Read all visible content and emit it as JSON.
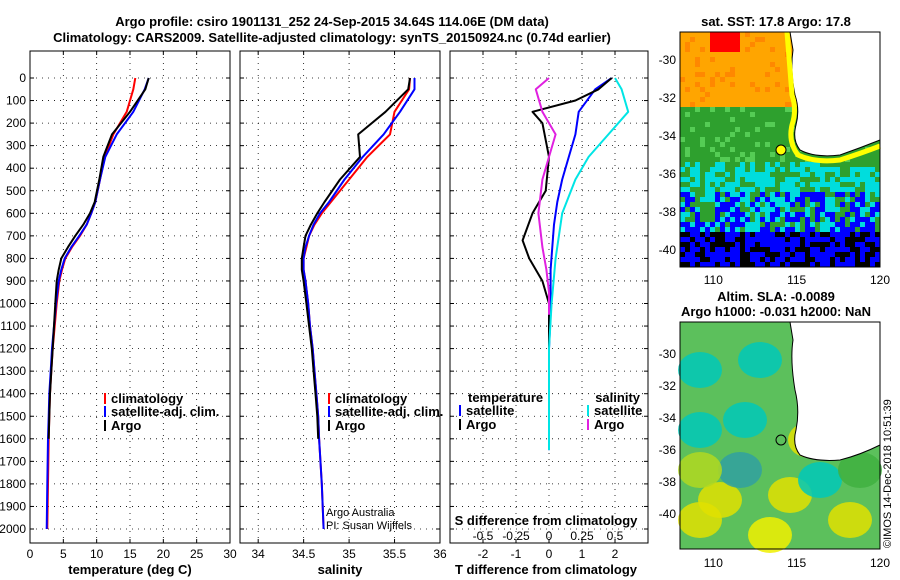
{
  "header": {
    "line1": "Argo profile: csiro 1901131_252 24-Sep-2015 34.64S 114.06E (DM data)",
    "line2": "Climatology: CARS2009. Satellite-adjusted climatology: synTS_20150924.nc (0.74d earlier)"
  },
  "colors": {
    "climatology": "#ff0000",
    "satellite": "#0000ff",
    "argo": "#000000",
    "s_satellite": "#00e5e5",
    "s_argo": "#e020e0"
  },
  "depth_ticks": [
    "0",
    "100",
    "200",
    "300",
    "400",
    "500",
    "600",
    "700",
    "800",
    "900",
    "1000",
    "1100",
    "1200",
    "1300",
    "1400",
    "1500",
    "1600",
    "1700",
    "1800",
    "1900",
    "2000"
  ],
  "chart_data": [
    {
      "type": "line",
      "xlabel": "temperature (deg C)",
      "ylim": [
        2000,
        0
      ],
      "xlim": [
        0,
        30
      ],
      "xticks": [
        "0",
        "5",
        "10",
        "15",
        "20",
        "25",
        "30"
      ],
      "legend": [
        "climatology",
        "satellite-adj. clim.",
        "Argo"
      ],
      "series": [
        {
          "name": "climatology",
          "x": [
            15.8,
            15.5,
            14.5,
            12.5,
            11.2,
            10.5,
            9.8,
            9.2,
            8.5,
            7.5,
            6.3,
            5.3,
            4.8,
            4.4,
            4.0,
            3.7,
            3.4,
            3.2,
            3.0,
            2.9,
            2.8,
            2.7,
            2.6
          ],
          "y": [
            0,
            50,
            150,
            250,
            350,
            450,
            550,
            600,
            650,
            700,
            750,
            800,
            850,
            900,
            1000,
            1100,
            1200,
            1300,
            1400,
            1500,
            1600,
            1800,
            2000
          ]
        },
        {
          "name": "satellite-adj. clim.",
          "x": [
            17.8,
            17.2,
            15.5,
            13.0,
            11.3,
            10.5,
            9.8,
            9.2,
            8.5,
            7.4,
            6.2,
            5.2,
            4.7,
            4.3,
            3.9,
            3.6,
            3.3,
            3.1,
            2.9,
            2.8,
            2.7,
            2.6,
            2.5
          ],
          "y": [
            0,
            50,
            150,
            250,
            350,
            450,
            550,
            600,
            650,
            700,
            750,
            800,
            850,
            900,
            1000,
            1100,
            1200,
            1300,
            1400,
            1500,
            1600,
            1800,
            2000
          ]
        },
        {
          "name": "Argo",
          "x": [
            17.8,
            17.3,
            15.0,
            12.3,
            11.0,
            10.4,
            9.7,
            9.0,
            8.0,
            6.8,
            5.7,
            4.7,
            4.3,
            4.0,
            3.8,
            3.6,
            3.4,
            3.2,
            3.0,
            2.9,
            2.8
          ],
          "y": [
            0,
            50,
            150,
            250,
            350,
            450,
            550,
            600,
            650,
            700,
            750,
            800,
            850,
            900,
            1000,
            1100,
            1200,
            1300,
            1400,
            1500,
            1600
          ]
        }
      ]
    },
    {
      "type": "line",
      "xlabel": "salinity",
      "ylim": [
        2000,
        0
      ],
      "xlim": [
        33.8,
        36.0
      ],
      "xticks": [
        "34",
        "34.5",
        "35",
        "35.5",
        "36"
      ],
      "legend": [
        "climatology",
        "satellite-adj. clim.",
        "Argo"
      ],
      "annotation": [
        "Argo Australia",
        "PI: Susan Wijffels"
      ],
      "series": [
        {
          "name": "climatology",
          "x": [
            35.67,
            35.66,
            35.5,
            35.45,
            35.2,
            35.0,
            34.8,
            34.7,
            34.62,
            34.56,
            34.53,
            34.5,
            34.5,
            34.52,
            34.55,
            34.57,
            34.6,
            34.62,
            34.64,
            34.66,
            34.67,
            34.7,
            34.72
          ],
          "y": [
            0,
            50,
            150,
            250,
            350,
            450,
            550,
            600,
            650,
            700,
            750,
            800,
            850,
            900,
            1000,
            1100,
            1200,
            1300,
            1400,
            1500,
            1600,
            1800,
            2000
          ]
        },
        {
          "name": "satellite-adj. clim.",
          "x": [
            35.72,
            35.72,
            35.56,
            35.38,
            35.15,
            34.95,
            34.78,
            34.68,
            34.61,
            34.56,
            34.52,
            34.5,
            34.5,
            34.52,
            34.55,
            34.57,
            34.6,
            34.62,
            34.64,
            34.66,
            34.67,
            34.7,
            34.72
          ],
          "y": [
            0,
            50,
            150,
            250,
            350,
            450,
            550,
            600,
            650,
            700,
            750,
            800,
            850,
            900,
            1000,
            1100,
            1200,
            1300,
            1400,
            1500,
            1600,
            1800,
            2000
          ]
        },
        {
          "name": "Argo",
          "x": [
            35.67,
            35.65,
            35.4,
            35.1,
            35.12,
            34.9,
            34.73,
            34.65,
            34.58,
            34.52,
            34.5,
            34.48,
            34.48,
            34.5,
            34.53,
            34.56,
            34.59,
            34.61,
            34.63,
            34.65,
            34.66
          ],
          "y": [
            0,
            50,
            150,
            250,
            350,
            450,
            550,
            600,
            650,
            700,
            750,
            800,
            850,
            900,
            1000,
            1100,
            1200,
            1300,
            1400,
            1500,
            1600
          ]
        }
      ]
    },
    {
      "type": "line",
      "xlabel": "T difference from climatology",
      "ylim": [
        2000,
        0
      ],
      "xlim": [
        -3,
        3
      ],
      "xticks": [
        "-2",
        "-1",
        "0",
        "1",
        "2"
      ],
      "top_axis_label": "S difference from climatology",
      "top_xticks": [
        "-0.5",
        "-0.25",
        "0",
        "0.25",
        "0.5"
      ],
      "legend_titles": [
        "temperature",
        "salinity"
      ],
      "legend": [
        "satellite",
        "Argo",
        "satellite",
        "Argo"
      ],
      "series": [
        {
          "name": "satellite",
          "x": [
            1.9,
            1.4,
            0.9,
            0.8,
            0.6,
            0.4,
            0.25,
            0.15,
            0.1,
            0.05,
            0.05,
            0.05,
            0.0,
            0.0,
            0.0,
            0.0
          ],
          "y": [
            0,
            50,
            150,
            250,
            350,
            450,
            550,
            650,
            750,
            850,
            950,
            1050,
            1200,
            1400,
            1600,
            1650
          ]
        },
        {
          "name": "Argo",
          "x": [
            1.9,
            1.5,
            0.8,
            -0.5,
            -0.2,
            0.0,
            -0.1,
            -0.5,
            -0.8,
            -0.6,
            -0.2,
            0.0,
            0.0,
            0.0
          ],
          "y": [
            0,
            50,
            100,
            150,
            200,
            350,
            500,
            600,
            720,
            800,
            900,
            1000,
            1200,
            1600
          ]
        },
        {
          "name": "satellite",
          "x": [
            0.5,
            0.55,
            0.6,
            0.45,
            0.3,
            0.2,
            0.1,
            0.05,
            0.02,
            0.0,
            0.0,
            0.0
          ],
          "y": [
            0,
            50,
            150,
            250,
            350,
            450,
            600,
            800,
            1000,
            1200,
            1400,
            1650
          ]
        },
        {
          "name": "Argo",
          "x": [
            0.0,
            -0.1,
            -0.05,
            0.05,
            0.0,
            -0.05,
            -0.08,
            -0.05,
            -0.02,
            0.0,
            0.0,
            0.0
          ],
          "y": [
            0,
            50,
            150,
            250,
            350,
            450,
            600,
            750,
            850,
            950,
            1000,
            1050
          ]
        }
      ]
    }
  ],
  "maps": {
    "sst_title": "sat. SST: 17.8 Argo: 17.8",
    "sla_title1": "Altim. SLA: -0.0089",
    "sla_title2": "Argo h1000: -0.031 h2000: NaN",
    "yticks": [
      "-30",
      "-32",
      "-34",
      "-36",
      "-38",
      "-40"
    ],
    "xticks": [
      "110",
      "115",
      "120"
    ]
  },
  "footer_stamp": "©IMOS 14-Dec-2018 10:51:39"
}
